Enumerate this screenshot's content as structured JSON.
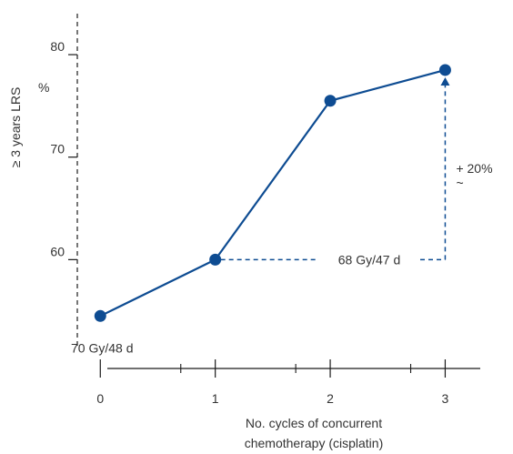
{
  "chart_data": {
    "type": "line",
    "title": "",
    "ylabel": "≥ 3 years LRS",
    "y_unit": "%",
    "xlabel_line1": "No. cycles of concurrent",
    "xlabel_line2": "chemotherapy (cisplatin)",
    "x_ticks": [
      "0",
      "1",
      "2",
      "3"
    ],
    "y_ticks": [
      "60",
      "70",
      "80"
    ],
    "ylim": [
      50,
      84
    ],
    "xlim": [
      -0.2,
      3.4
    ],
    "series": [
      {
        "x": [
          0,
          1,
          2,
          3
        ],
        "values": [
          54.5,
          60,
          75.5,
          78.5
        ]
      }
    ],
    "colors": {
      "series": "#0e4c92",
      "axis": "#1a1a1a",
      "text": "#333333"
    },
    "annotations": {
      "start_label": "70 Gy/48 d",
      "reference_label": "68 Gy/47 d",
      "reference_level": 60,
      "gain_label": "+ 20%",
      "approx_symbol": "~"
    }
  }
}
